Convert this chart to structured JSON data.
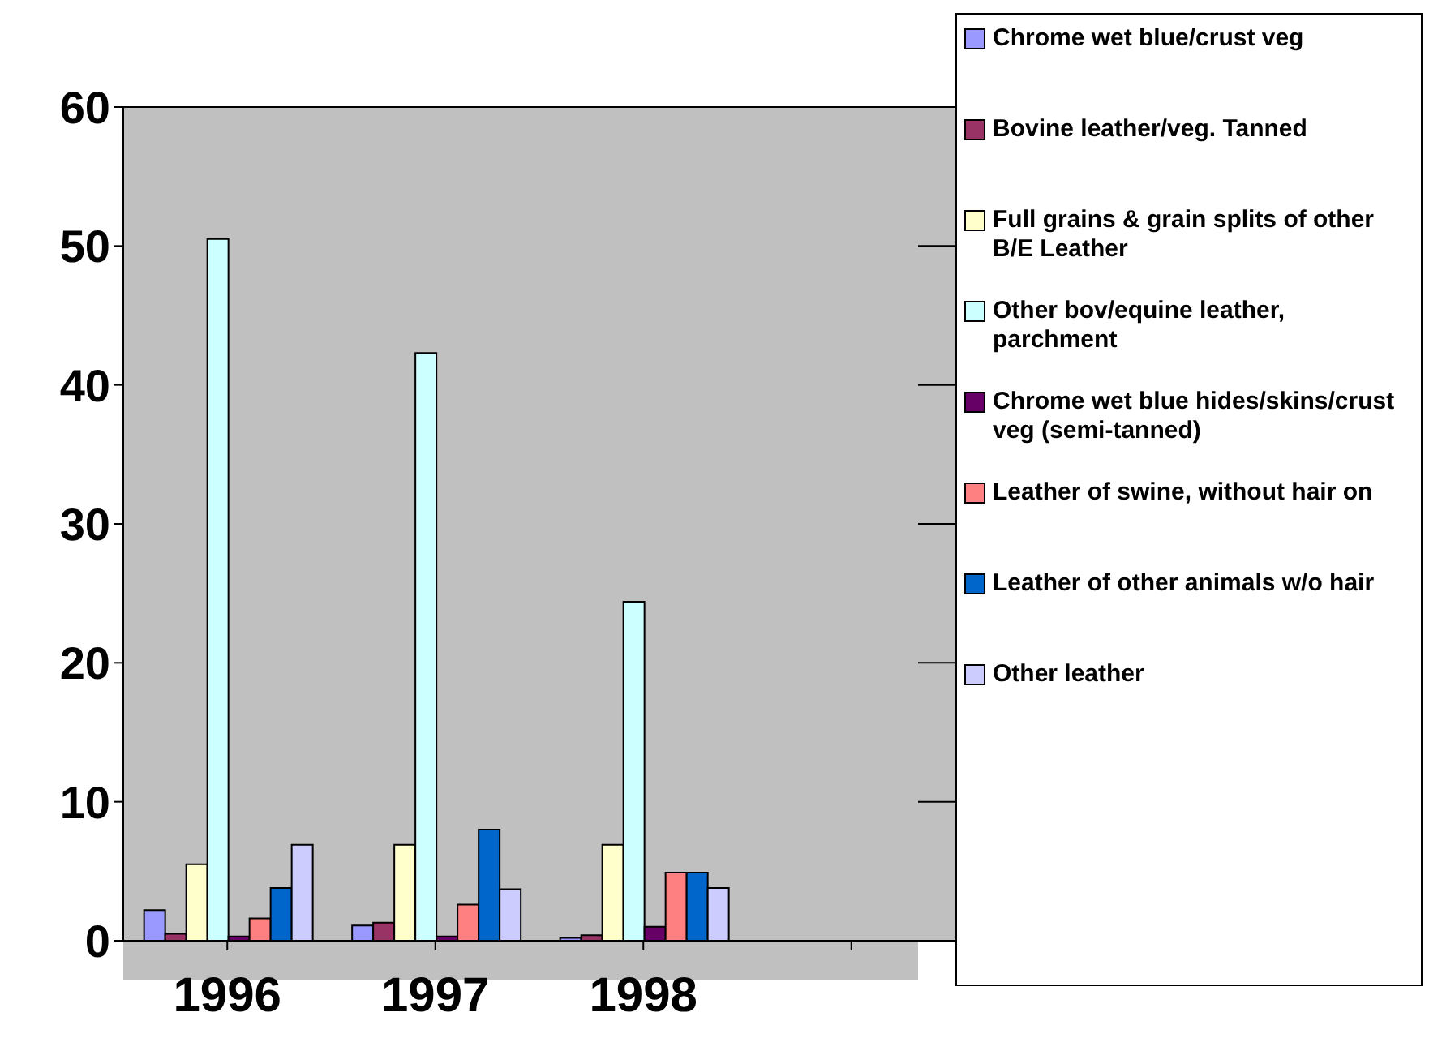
{
  "chart_data": {
    "type": "bar",
    "categories": [
      "1996",
      "1997",
      "1998",
      null
    ],
    "series": [
      {
        "name": "Chrome wet blue/crust veg",
        "color": "#9999ff",
        "values": [
          2.2,
          1.1,
          0.2,
          null
        ]
      },
      {
        "name": "Bovine leather/veg. Tanned",
        "color": "#993366",
        "values": [
          0.5,
          1.3,
          0.4,
          null
        ]
      },
      {
        "name": "Full grains & grain splits of other B/E Leather",
        "color": "#ffffcc",
        "values": [
          5.5,
          6.9,
          6.9,
          null
        ]
      },
      {
        "name": "Other bov/equine leather, parchment",
        "color": "#ccffff",
        "values": [
          50.5,
          42.3,
          24.4,
          null
        ]
      },
      {
        "name": "Chrome wet blue hides/skins/crust veg (semi-tanned)",
        "color": "#660066",
        "values": [
          0.3,
          0.3,
          1.0,
          null
        ]
      },
      {
        "name": "Leather of swine, without hair on",
        "color": "#ff8080",
        "values": [
          1.6,
          2.6,
          4.9,
          null
        ]
      },
      {
        "name": "Leather of other animals w/o hair",
        "color": "#0066cc",
        "values": [
          3.8,
          8.0,
          4.9,
          null
        ]
      },
      {
        "name": "Other leather",
        "color": "#ccccff",
        "values": [
          6.9,
          3.7,
          3.8,
          null
        ]
      }
    ],
    "ylim": [
      0,
      60
    ],
    "yticks": [
      0,
      10,
      20,
      30,
      40,
      50,
      60
    ],
    "grid": "y",
    "legend": "right"
  }
}
